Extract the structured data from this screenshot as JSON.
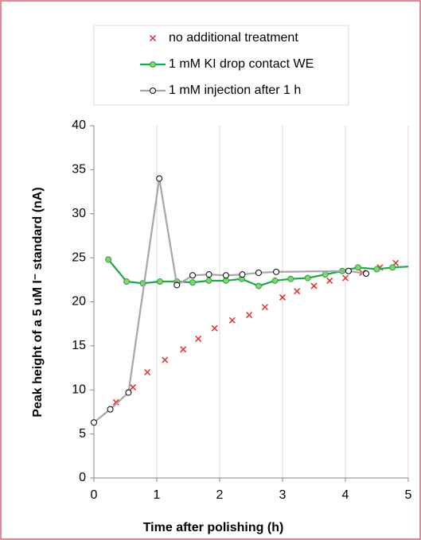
{
  "chart_data": {
    "type": "line",
    "x_label": "Time after polishing (h)",
    "y_label": "Peak height of a 5 uM I⁻ standard (nA)",
    "xlim": [
      0,
      5
    ],
    "xticks": [
      0,
      1,
      2,
      3,
      4,
      5
    ],
    "ylim": [
      0,
      40
    ],
    "yticks": [
      0,
      5,
      10,
      15,
      20,
      25,
      30,
      35,
      40
    ],
    "grid": "x",
    "legend": "top",
    "series": [
      {
        "name": "no additional treatment",
        "color": "#e0302a",
        "marker": "x",
        "line": false,
        "x": [
          0.35,
          0.62,
          0.85,
          1.13,
          1.42,
          1.66,
          1.92,
          2.2,
          2.47,
          2.72,
          3.0,
          3.23,
          3.5,
          3.75,
          4.0,
          4.27,
          4.55,
          4.8
        ],
        "values": [
          8.6,
          10.3,
          12.0,
          13.4,
          14.6,
          15.8,
          17.0,
          17.9,
          18.5,
          19.4,
          20.5,
          21.2,
          21.8,
          22.4,
          22.7,
          23.3,
          23.9,
          24.4
        ]
      },
      {
        "name": "1 mM KI drop contact WE",
        "color": "#1aa84a",
        "marker": "circle",
        "marker_fill": "#8cd06c",
        "line": true,
        "x": [
          0.23,
          0.52,
          0.78,
          1.05,
          1.32,
          1.57,
          1.83,
          2.1,
          2.35,
          2.62,
          2.88,
          3.13,
          3.4,
          3.68,
          3.95,
          4.2,
          4.5,
          4.75,
          5.0
        ],
        "values": [
          24.8,
          22.3,
          22.1,
          22.3,
          22.3,
          22.2,
          22.4,
          22.4,
          22.6,
          21.8,
          22.4,
          22.6,
          22.7,
          23.1,
          23.5,
          23.9,
          23.7,
          23.9,
          24.0
        ]
      },
      {
        "name": "1 mM injection after 1 h",
        "color": "#a6a6a6",
        "marker": "circle",
        "marker_fill": "#ffffff",
        "line": true,
        "x": [
          0,
          0.26,
          0.55,
          1.04,
          1.32,
          1.57,
          1.83,
          2.1,
          2.36,
          2.62,
          2.9,
          4.05,
          4.33
        ],
        "values": [
          6.3,
          7.8,
          9.7,
          34.0,
          21.9,
          23.0,
          23.1,
          23.0,
          23.1,
          23.3,
          23.4,
          23.5,
          23.2
        ]
      }
    ]
  }
}
